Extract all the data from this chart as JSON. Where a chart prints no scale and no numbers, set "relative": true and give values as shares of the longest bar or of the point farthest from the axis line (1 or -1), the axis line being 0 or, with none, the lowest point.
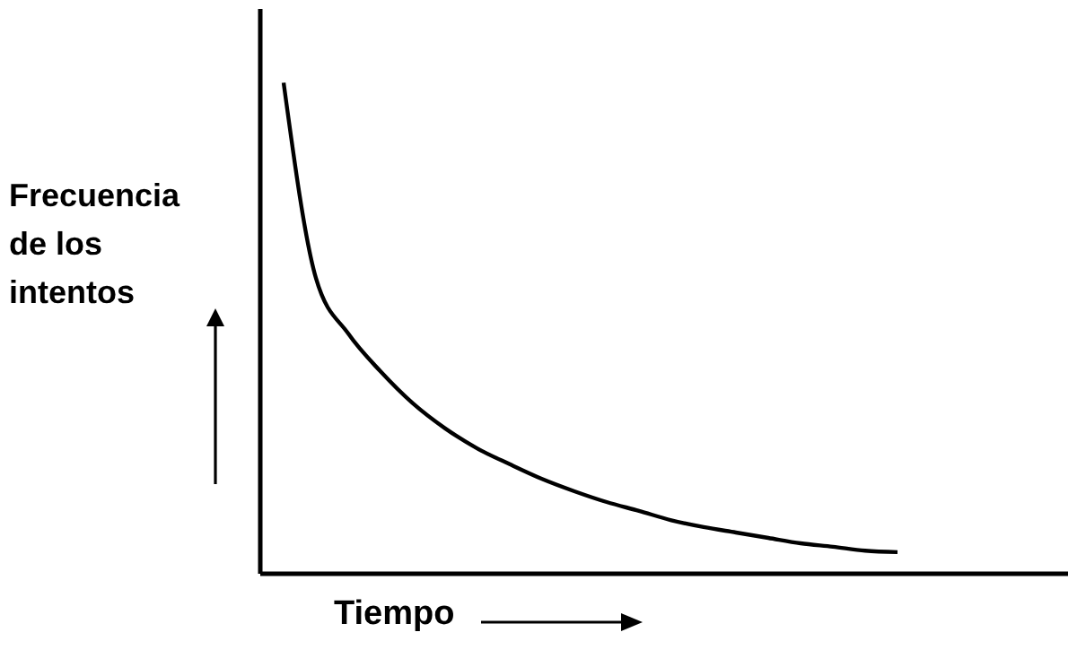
{
  "chart_data": {
    "type": "line",
    "relative": true,
    "xlabel": "Tiempo",
    "ylabel": "Frecuencia de los intentos",
    "color": "#000000",
    "marker": "none",
    "line_style": "solid",
    "grid": false,
    "legend": false,
    "categories": [
      null,
      null,
      null,
      null,
      null,
      null,
      null,
      null,
      null,
      null,
      null,
      null,
      null,
      null,
      null,
      null,
      null,
      null,
      null,
      null
    ],
    "values": [
      1,
      0.602,
      0.489,
      0.412,
      0.347,
      0.296,
      0.255,
      0.223,
      0.193,
      0.168,
      0.146,
      0.128,
      0.109,
      0.095,
      0.084,
      0.073,
      0.062,
      0.055,
      0.047,
      0.044
    ]
  }
}
